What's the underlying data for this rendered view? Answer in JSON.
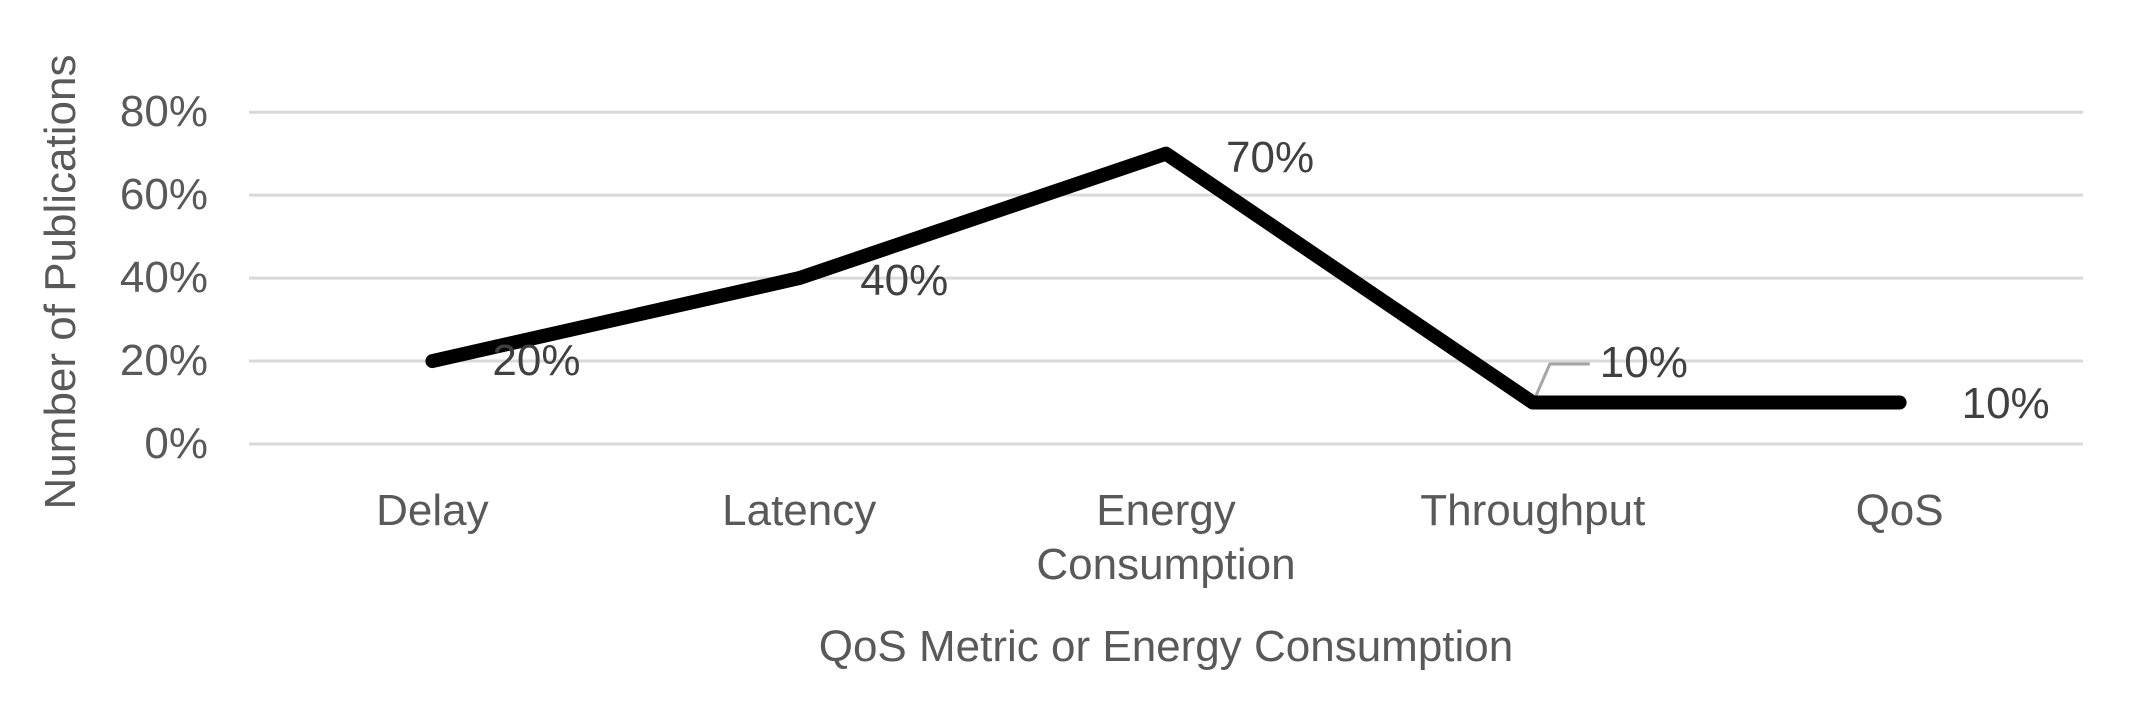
{
  "chart_data": {
    "type": "line",
    "title": "",
    "categories": [
      "Delay",
      "Latency",
      "Energy Consumption",
      "Throughput",
      "QoS"
    ],
    "values": [
      20,
      40,
      70,
      10,
      10
    ],
    "data_labels": [
      "20%",
      "40%",
      "70%",
      "10%",
      "10%"
    ],
    "callout_point": "Throughput",
    "yticks": [
      {
        "value": 0,
        "label": "0%"
      },
      {
        "value": 20,
        "label": "20%"
      },
      {
        "value": 40,
        "label": "40%"
      },
      {
        "value": 60,
        "label": "60%"
      },
      {
        "value": 80,
        "label": "80%"
      }
    ],
    "ylim": [
      0,
      90
    ],
    "xlabel": "QoS Metric or Energy Consumption",
    "ylabel": "Number of Publications",
    "grid": "horizontal",
    "legend": "none",
    "colors": {
      "series_line": "#000000",
      "gridline": "#D9D9D9",
      "axis_text": "#595959",
      "data_label_text": "#404040",
      "leader_line": "#A6A6A6",
      "background": "#FFFFFF"
    }
  }
}
